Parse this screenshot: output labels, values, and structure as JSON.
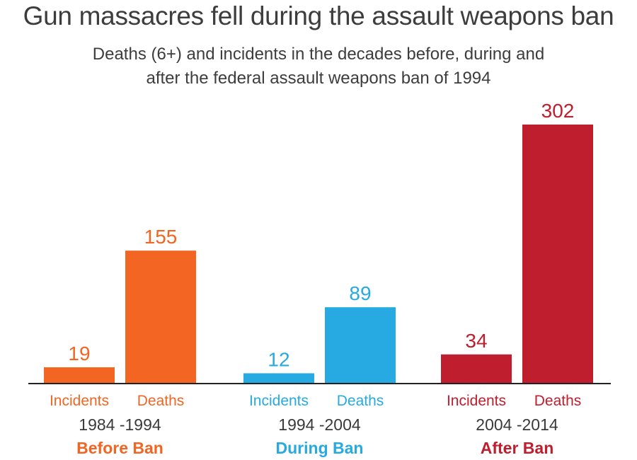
{
  "title": "Gun massacres fell during the assault weapons ban",
  "subtitle_lines": [
    "Deaths (6+) and incidents in the decades before, during and",
    "after the federal assault weapons ban of 1994"
  ],
  "chart_data": {
    "type": "bar",
    "title": "Gun massacres fell during the assault weapons ban",
    "subtitle": "Deaths (6+) and incidents in the decades before, during and after the federal assault weapons ban of 1994",
    "ylim": [
      0,
      302
    ],
    "grid": false,
    "legend": "none",
    "bar_labels": [
      "Incidents",
      "Deaths"
    ],
    "groups": [
      {
        "period": "1984 -1994",
        "label": "Before Ban",
        "color": "#f26522",
        "incidents": 19,
        "deaths": 155
      },
      {
        "period": "1994 -2004",
        "label": "During Ban",
        "color": "#27aae1",
        "incidents": 12,
        "deaths": 89
      },
      {
        "period": "2004 -2014",
        "label": "After Ban",
        "color": "#be1e2d",
        "incidents": 34,
        "deaths": 302
      }
    ]
  }
}
